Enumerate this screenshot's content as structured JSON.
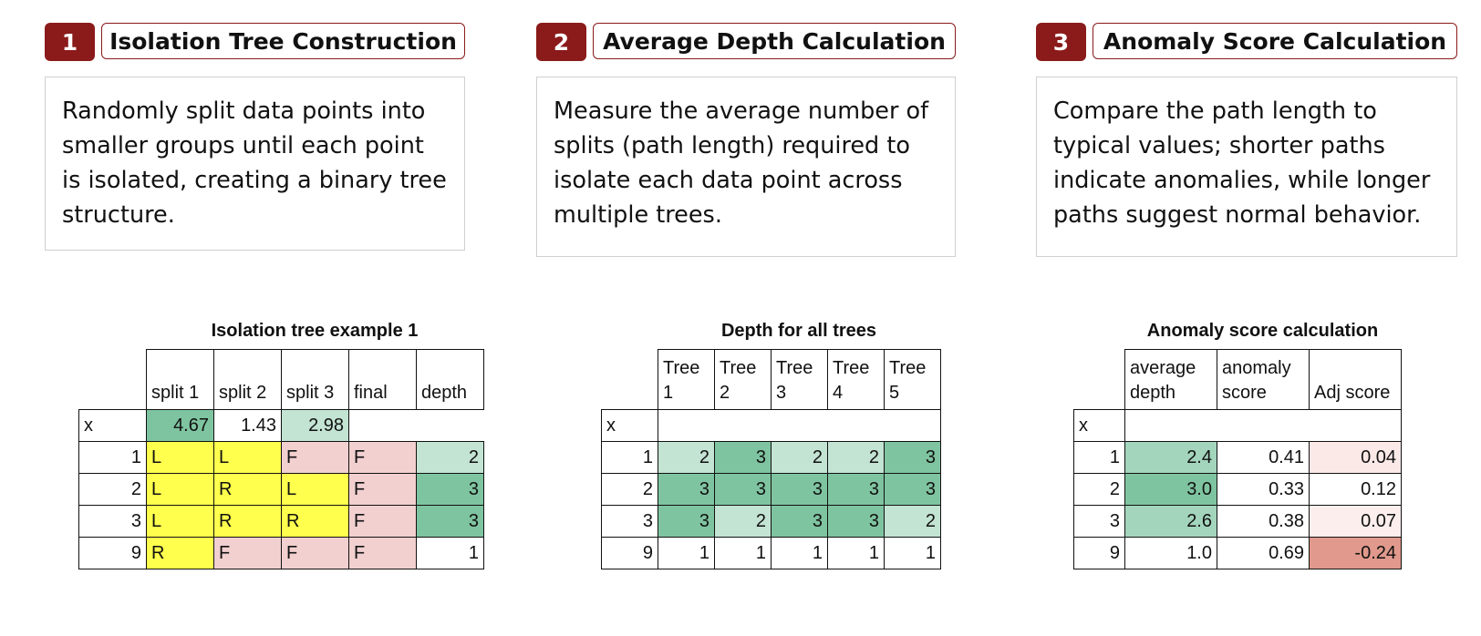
{
  "steps": [
    {
      "number": "1",
      "title": "Isolation Tree Construction",
      "description": "Randomly split data points into smaller groups until each point is isolated, creating a binary tree structure."
    },
    {
      "number": "2",
      "title": "Average Depth Calculation",
      "description": "Measure the average number of splits (path length) required to isolate each data point across multiple trees."
    },
    {
      "number": "3",
      "title": "Anomaly Score Calculation",
      "description": "Compare the path length to typical values; shorter paths indicate anomalies, while longer paths suggest normal behavior."
    }
  ],
  "tables": [
    {
      "title": "Isolation tree example 1",
      "columns": [
        "split 1",
        "split 2",
        "split 3",
        "final",
        "depth"
      ],
      "x_row": {
        "label": "x",
        "values": [
          "4.67",
          "1.43",
          "2.98"
        ],
        "colors": [
          "#7fc4a0",
          "#ffffff",
          "#c3e3d3"
        ]
      },
      "rows": [
        {
          "label": "1",
          "cells": [
            "L",
            "L",
            "F",
            "F",
            "2"
          ],
          "colors": [
            "#ffff4d",
            "#ffff4d",
            "#f2d0d0",
            "#f2d0d0",
            "#c3e3d3"
          ]
        },
        {
          "label": "2",
          "cells": [
            "L",
            "R",
            "L",
            "F",
            "3"
          ],
          "colors": [
            "#ffff4d",
            "#ffff4d",
            "#ffff4d",
            "#f2d0d0",
            "#7fc4a0"
          ]
        },
        {
          "label": "3",
          "cells": [
            "L",
            "R",
            "R",
            "F",
            "3"
          ],
          "colors": [
            "#ffff4d",
            "#ffff4d",
            "#ffff4d",
            "#f2d0d0",
            "#7fc4a0"
          ]
        },
        {
          "label": "9",
          "cells": [
            "R",
            "F",
            "F",
            "F",
            "1"
          ],
          "colors": [
            "#ffff4d",
            "#f2d0d0",
            "#f2d0d0",
            "#f2d0d0",
            "#ffffff"
          ]
        }
      ]
    },
    {
      "title": "Depth for all trees",
      "columns": [
        "Tree 1",
        "Tree 2",
        "Tree 3",
        "Tree 4",
        "Tree 5"
      ],
      "x_row": {
        "label": "x"
      },
      "rows": [
        {
          "label": "1",
          "cells": [
            "2",
            "3",
            "2",
            "2",
            "3"
          ],
          "colors": [
            "#c3e3d3",
            "#7fc4a0",
            "#c3e3d3",
            "#c3e3d3",
            "#7fc4a0"
          ]
        },
        {
          "label": "2",
          "cells": [
            "3",
            "3",
            "3",
            "3",
            "3"
          ],
          "colors": [
            "#7fc4a0",
            "#7fc4a0",
            "#7fc4a0",
            "#7fc4a0",
            "#7fc4a0"
          ]
        },
        {
          "label": "3",
          "cells": [
            "3",
            "2",
            "3",
            "3",
            "2"
          ],
          "colors": [
            "#7fc4a0",
            "#c3e3d3",
            "#7fc4a0",
            "#7fc4a0",
            "#c3e3d3"
          ]
        },
        {
          "label": "9",
          "cells": [
            "1",
            "1",
            "1",
            "1",
            "1"
          ],
          "colors": [
            "#ffffff",
            "#ffffff",
            "#ffffff",
            "#ffffff",
            "#ffffff"
          ]
        }
      ]
    },
    {
      "title": "Anomaly score calculation",
      "columns": [
        "average depth",
        "anomaly score",
        "Adj score"
      ],
      "x_row": {
        "label": "x"
      },
      "rows": [
        {
          "label": "1",
          "cells": [
            "2.4",
            "0.41",
            "0.04"
          ],
          "colors": [
            "#a3d5bc",
            "#ffffff",
            "#fbe9e8"
          ]
        },
        {
          "label": "2",
          "cells": [
            "3.0",
            "0.33",
            "0.12"
          ],
          "colors": [
            "#7fc4a0",
            "#ffffff",
            "#ffffff"
          ]
        },
        {
          "label": "3",
          "cells": [
            "2.6",
            "0.38",
            "0.07"
          ],
          "colors": [
            "#a3d5bc",
            "#ffffff",
            "#fbeeec"
          ]
        },
        {
          "label": "9",
          "cells": [
            "1.0",
            "0.69",
            "-0.24"
          ],
          "colors": [
            "#ffffff",
            "#ffffff",
            "#e0998c"
          ]
        }
      ]
    }
  ]
}
